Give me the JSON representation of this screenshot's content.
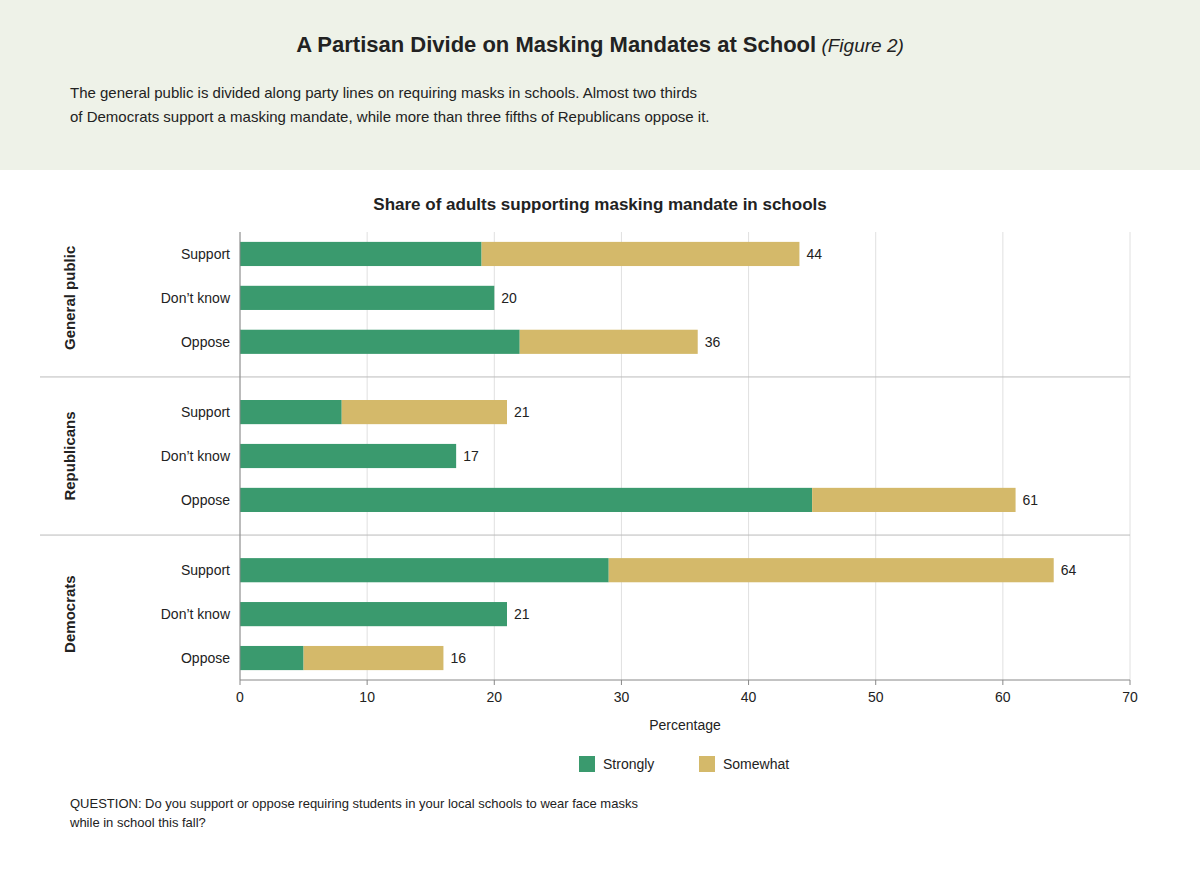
{
  "chart_data": {
    "type": "bar",
    "orientation": "horizontal",
    "stacked": true,
    "title": "A Partisan Divide on Masking Mandates at School",
    "title_suffix": " (Figure 2)",
    "subtitle": "The general public is divided along party lines on requiring masks in schools. Almost two thirds\nof Democrats support a masking mandate, while more than three fifths of Republicans oppose it.",
    "chart_title": "Share of adults supporting masking mandate in schools",
    "groups": [
      "General public",
      "Republicans",
      "Democrats"
    ],
    "categories": [
      "Support",
      "Don’t know",
      "Oppose",
      "Support",
      "Don’t know",
      "Oppose",
      "Support",
      "Don’t know",
      "Oppose"
    ],
    "series": [
      {
        "name": "Strongly",
        "color": "#3a9a6e",
        "values": [
          19,
          20,
          22,
          8,
          17,
          45,
          29,
          21,
          5
        ]
      },
      {
        "name": "Somewhat",
        "color": "#d4b96a",
        "values": [
          25,
          0,
          14,
          13,
          0,
          16,
          35,
          0,
          11
        ]
      }
    ],
    "totals": [
      44,
      20,
      36,
      21,
      17,
      61,
      64,
      21,
      16
    ],
    "xlabel": "Percentage",
    "xlim": [
      0,
      70
    ],
    "xticks": [
      0,
      10,
      20,
      30,
      40,
      50,
      60,
      70
    ],
    "grid": true,
    "legend": "bottom",
    "note": "QUESTION: Do you support or oppose requiring students in your local schools to wear face masks\nwhile in school this fall?"
  }
}
